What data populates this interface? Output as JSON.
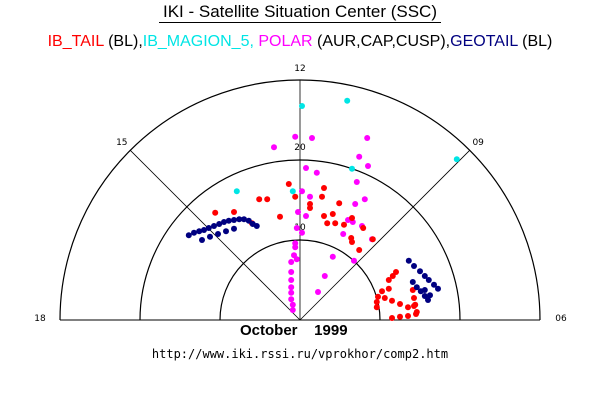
{
  "title": "IKI - Satellite Situation Center (SSC)",
  "legend": [
    {
      "text": "IB_TAIL",
      "color": "#ff0000"
    },
    {
      "text": " (BL),",
      "color": "#000000"
    },
    {
      "text": "IB_MAGION_5, ",
      "color": "#00e5e5"
    },
    {
      "text": "POLAR",
      "color": "#ff00ff"
    },
    {
      "text": " (AUR,CAP,CUSP),",
      "color": "#000000"
    },
    {
      "text": "GEOTAIL",
      "color": "#000080"
    },
    {
      "text": " (BL)",
      "color": "#000000"
    }
  ],
  "date_label": "October    1999",
  "url": "http://www.iki.rssi.ru/vprokhor/comp2.htm",
  "chart_data": {
    "type": "scatter",
    "coordinate_system": "polar (MLT dial), x/y in radial units; 12 at top, 06 right, 18 left",
    "mlt_labels": [
      "18",
      "15",
      "12",
      "09",
      "06"
    ],
    "ring_values": [
      10,
      20,
      30
    ],
    "ring_labels": [
      "10",
      "20"
    ],
    "series": [
      {
        "name": "IB_MAGION_5",
        "color": "#00e5e5",
        "points": [
          [
            0.25,
            26.75
          ],
          [
            5.9,
            27.4
          ],
          [
            19.6,
            20.1
          ],
          [
            6.5,
            18.9
          ],
          [
            -7.9,
            16.1
          ],
          [
            -0.9,
            16.1
          ]
        ]
      },
      {
        "name": "POLAR",
        "color": "#ff00ff",
        "points": [
          [
            -0.6,
            22.9
          ],
          [
            1.5,
            22.75
          ],
          [
            -3.25,
            21.6
          ],
          [
            8.4,
            22.75
          ],
          [
            7.4,
            20.4
          ],
          [
            8.5,
            19.25
          ],
          [
            0.75,
            19
          ],
          [
            2.1,
            18.4
          ],
          [
            7.1,
            17.25
          ],
          [
            0.25,
            16.1
          ],
          [
            1.25,
            15.4
          ],
          [
            8.1,
            15.1
          ],
          [
            6.9,
            14.5
          ],
          [
            -0.25,
            13.5
          ],
          [
            0.75,
            13
          ],
          [
            6,
            12.5
          ],
          [
            6.6,
            12.25
          ],
          [
            7.75,
            11.75
          ],
          [
            -0.4,
            11.5
          ],
          [
            0.25,
            10.9
          ],
          [
            5.4,
            10.75
          ],
          [
            9,
            10.1
          ],
          [
            -0.6,
            9.6
          ],
          [
            -0.6,
            9.1
          ],
          [
            -0.75,
            8.1
          ],
          [
            -0.4,
            7.6
          ],
          [
            4.1,
            7.9
          ],
          [
            6.75,
            7.4
          ],
          [
            -1.1,
            7.25
          ],
          [
            -1.1,
            6
          ],
          [
            3.1,
            5.5
          ],
          [
            -1.1,
            5
          ],
          [
            -1.1,
            4.1
          ],
          [
            2.25,
            3.5
          ],
          [
            -1.1,
            3.4
          ],
          [
            -1.1,
            2.6
          ],
          [
            -0.9,
            1.9
          ],
          [
            -0.9,
            1.25
          ]
        ]
      },
      {
        "name": "IB_TAIL",
        "color": "#ff0000",
        "points": [
          [
            -1.4,
            17
          ],
          [
            3,
            16.5
          ],
          [
            -0.6,
            15.4
          ],
          [
            -5.1,
            15.1
          ],
          [
            -4.1,
            15.1
          ],
          [
            2.75,
            15.4
          ],
          [
            4.9,
            14.6
          ],
          [
            1.25,
            14.5
          ],
          [
            1.25,
            14
          ],
          [
            -10.6,
            13.4
          ],
          [
            -8.25,
            13.5
          ],
          [
            -2.5,
            12.9
          ],
          [
            3,
            13
          ],
          [
            4.1,
            13.25
          ],
          [
            6.5,
            12.75
          ],
          [
            3.4,
            12.1
          ],
          [
            4.4,
            12.1
          ],
          [
            5.5,
            11.9
          ],
          [
            7.9,
            11.5
          ],
          [
            -6,
            12.1
          ],
          [
            6.4,
            10.25
          ],
          [
            6.5,
            9.75
          ],
          [
            7.4,
            8.75
          ],
          [
            9.1,
            10.1
          ],
          [
            9.6,
            1.6
          ],
          [
            9.6,
            2.25
          ],
          [
            9.75,
            2.9
          ],
          [
            10.25,
            3.6
          ],
          [
            11.1,
            3.9
          ],
          [
            11.1,
            5
          ],
          [
            11.6,
            5.5
          ],
          [
            12,
            6
          ],
          [
            10.6,
            2.75
          ],
          [
            11.5,
            2.4
          ],
          [
            12.5,
            2
          ],
          [
            13.5,
            1.6
          ],
          [
            14.25,
            1.75
          ],
          [
            11.5,
            0.25
          ],
          [
            12.5,
            0.4
          ],
          [
            13.5,
            0.5
          ],
          [
            14.5,
            0.75
          ],
          [
            14.1,
            3.75
          ],
          [
            14.25,
            2.75
          ],
          [
            14.4,
            1.9
          ],
          [
            14.6,
            1
          ]
        ]
      },
      {
        "name": "GEOTAIL",
        "color": "#000080",
        "points": [
          [
            13.6,
            7.4
          ],
          [
            14.25,
            6.75
          ],
          [
            15,
            6.1
          ],
          [
            15.6,
            5.5
          ],
          [
            16.1,
            5
          ],
          [
            16.75,
            4.4
          ],
          [
            17.25,
            3.9
          ],
          [
            14.1,
            4.75
          ],
          [
            14.6,
            4.1
          ],
          [
            15.1,
            3.6
          ],
          [
            15.6,
            3
          ],
          [
            16,
            2.5
          ],
          [
            15.6,
            3.75
          ],
          [
            16.25,
            3.1
          ],
          [
            -13.9,
            10.6
          ],
          [
            -13.25,
            10.9
          ],
          [
            -12.6,
            11.1
          ],
          [
            -12,
            11.25
          ],
          [
            -11.4,
            11.5
          ],
          [
            -10.75,
            11.75
          ],
          [
            -10.1,
            12
          ],
          [
            -9.5,
            12.25
          ],
          [
            -8.9,
            12.4
          ],
          [
            -8.25,
            12.5
          ],
          [
            -7.6,
            12.6
          ],
          [
            -7,
            12.6
          ],
          [
            -6.4,
            12.4
          ],
          [
            -5.9,
            12
          ],
          [
            -5.4,
            11.75
          ],
          [
            -12.25,
            10
          ],
          [
            -11.25,
            10.4
          ],
          [
            -10.25,
            10.75
          ],
          [
            -9.25,
            11.1
          ],
          [
            -8.25,
            11.4
          ]
        ]
      }
    ]
  }
}
